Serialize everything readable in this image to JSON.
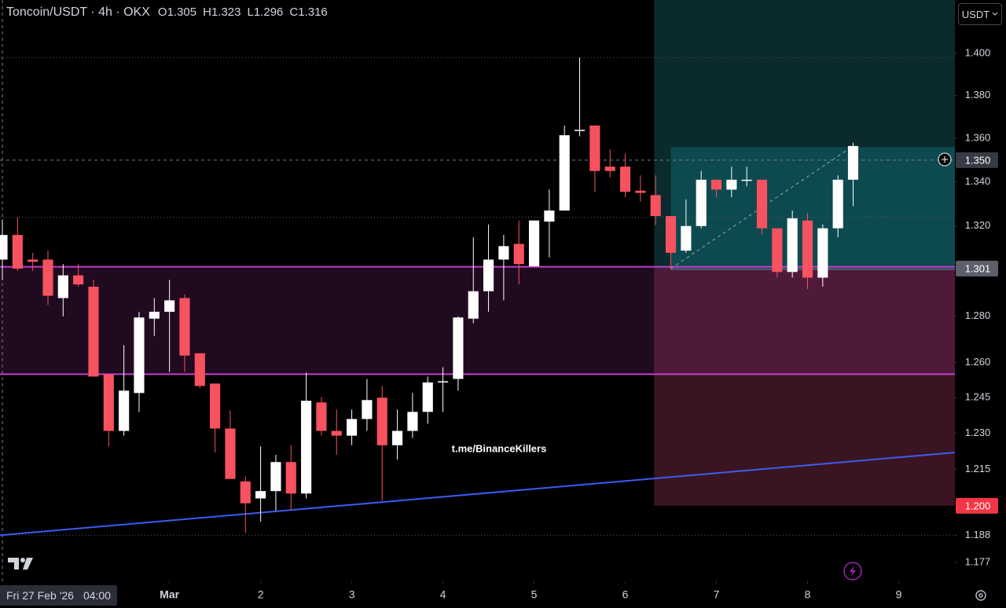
{
  "chart_data": {
    "type": "candlestick",
    "title": "Toncoin/USDT · 4h · OKX",
    "ohlc_header": [
      {
        "key": "O",
        "value": "1.305"
      },
      {
        "key": "H",
        "value": "1.323"
      },
      {
        "key": "L",
        "value": "1.296"
      },
      {
        "key": "C",
        "value": "1.316"
      }
    ],
    "currency": "USDT",
    "watermark": "t.me/BinanceKillers",
    "log_scale": true,
    "ylim": [
      1.1695,
      1.4257
    ],
    "yticks": [
      {
        "value": 1.4,
        "label": "1.400"
      },
      {
        "value": 1.38,
        "label": "1.380"
      },
      {
        "value": 1.36,
        "label": "1.360"
      },
      {
        "value": 1.34,
        "label": "1.340"
      },
      {
        "value": 1.32,
        "label": "1.320"
      },
      {
        "value": 1.28,
        "label": "1.280"
      },
      {
        "value": 1.26,
        "label": "1.260"
      },
      {
        "value": 1.245,
        "label": "1.245"
      },
      {
        "value": 1.23,
        "label": "1.230"
      },
      {
        "value": 1.215,
        "label": "1.215"
      },
      {
        "value": 1.188,
        "label": "1.188"
      },
      {
        "value": 1.177,
        "label": "1.177"
      }
    ],
    "xlim": [
      -0.155,
      62.7
    ],
    "xticks": [
      {
        "value": 11,
        "label": "Mar"
      },
      {
        "value": 17,
        "label": "2"
      },
      {
        "value": 23,
        "label": "3"
      },
      {
        "value": 29,
        "label": "4"
      },
      {
        "value": 35,
        "label": "5"
      },
      {
        "value": 41,
        "label": "6"
      },
      {
        "value": 47,
        "label": "7"
      },
      {
        "value": 53,
        "label": "8"
      },
      {
        "value": 59,
        "label": "9"
      }
    ],
    "crosshair": {
      "x": 0,
      "date": "Fri 27 Feb '26",
      "time": "04:00"
    },
    "up_color": "#ffffff",
    "down_color": "#f7525f",
    "open": [
      1.305,
      1.316,
      1.305,
      1.305,
      1.288,
      1.298,
      1.293,
      1.255,
      1.231,
      1.247,
      1.279,
      1.282,
      1.288,
      1.264,
      1.251,
      1.232,
      1.21,
      1.203,
      1.206,
      1.218,
      1.205,
      1.243,
      1.231,
      1.229,
      1.236,
      1.245,
      1.225,
      1.231,
      1.239,
      1.2515,
      1.253,
      1.279,
      1.291,
      1.305,
      1.312,
      1.302,
      1.322,
      1.327,
      1.364,
      1.366,
      1.347,
      1.347,
      1.336,
      1.334,
      1.3245,
      1.309,
      1.32,
      1.341,
      1.3365,
      1.341,
      1.341,
      1.319,
      1.2995,
      1.3225,
      1.297,
      1.319,
      1.341
    ],
    "high": [
      1.323,
      1.324,
      1.308,
      1.309,
      1.303,
      1.303,
      1.296,
      1.255,
      1.2675,
      1.282,
      1.288,
      1.296,
      1.2895,
      1.264,
      1.251,
      1.2396,
      1.212,
      1.2245,
      1.221,
      1.225,
      1.2557,
      1.2453,
      1.24,
      1.24,
      1.253,
      1.25,
      1.24,
      1.247,
      1.254,
      1.258,
      1.28,
      1.315,
      1.3207,
      1.316,
      1.3225,
      1.3225,
      1.3365,
      1.366,
      1.398,
      1.366,
      1.355,
      1.353,
      1.343,
      1.343,
      1.3245,
      1.332,
      1.345,
      1.341,
      1.347,
      1.347,
      1.341,
      1.319,
      1.327,
      1.326,
      1.3207,
      1.343,
      1.358
    ],
    "low": [
      1.296,
      1.3,
      1.3,
      1.285,
      1.28,
      1.293,
      1.254,
      1.2245,
      1.229,
      1.239,
      1.2715,
      1.256,
      1.256,
      1.249,
      1.222,
      1.211,
      1.189,
      1.1935,
      1.198,
      1.198,
      1.203,
      1.229,
      1.221,
      1.225,
      1.231,
      1.202,
      1.219,
      1.228,
      1.234,
      1.239,
      1.248,
      1.277,
      1.282,
      1.287,
      1.294,
      1.302,
      1.306,
      1.327,
      1.361,
      1.3355,
      1.342,
      1.333,
      1.331,
      1.3205,
      1.301,
      1.308,
      1.319,
      1.333,
      1.333,
      1.338,
      1.316,
      1.297,
      1.297,
      1.292,
      1.293,
      1.315,
      1.329
    ],
    "close": [
      1.316,
      1.301,
      1.304,
      1.289,
      1.298,
      1.294,
      1.254,
      1.231,
      1.248,
      1.2795,
      1.282,
      1.287,
      1.263,
      1.25,
      1.232,
      1.211,
      1.201,
      1.206,
      1.218,
      1.205,
      1.2437,
      1.231,
      1.229,
      1.236,
      1.244,
      1.225,
      1.231,
      1.239,
      1.2515,
      1.252,
      1.2795,
      1.291,
      1.305,
      1.311,
      1.303,
      1.3225,
      1.327,
      1.3615,
      1.364,
      1.345,
      1.345,
      1.3355,
      1.335,
      1.3245,
      1.308,
      1.32,
      1.341,
      1.3365,
      1.341,
      1.341,
      1.319,
      1.2995,
      1.3235,
      1.297,
      1.319,
      1.341,
      1.3565
    ],
    "zone": {
      "top": 1.3018,
      "bottom": 1.255,
      "color": "#c23dc9"
    },
    "trendline": {
      "x": [
        -0.155,
        62.7
      ],
      "y": [
        1.188,
        1.222
      ],
      "color": "#3d5bf0"
    },
    "position": {
      "start": 42.9,
      "inner_start": 44,
      "end": 62.7,
      "entry": 1.301,
      "target": 1.356,
      "stop": 1.2
    },
    "progress_line": {
      "x": [
        44,
        56
      ],
      "y": [
        1.301,
        1.3565
      ]
    },
    "dotted_levels": [
      1.398,
      1.324,
      1.188
    ],
    "price_line": 1.35,
    "price_badges": [
      {
        "value": 1.35,
        "label": "1.350",
        "color": "#363a45"
      },
      {
        "value": 1.301,
        "label": "1.301",
        "color": "#5d606b"
      },
      {
        "value": 1.2,
        "label": "1.200",
        "color": "#f23645"
      }
    ]
  }
}
